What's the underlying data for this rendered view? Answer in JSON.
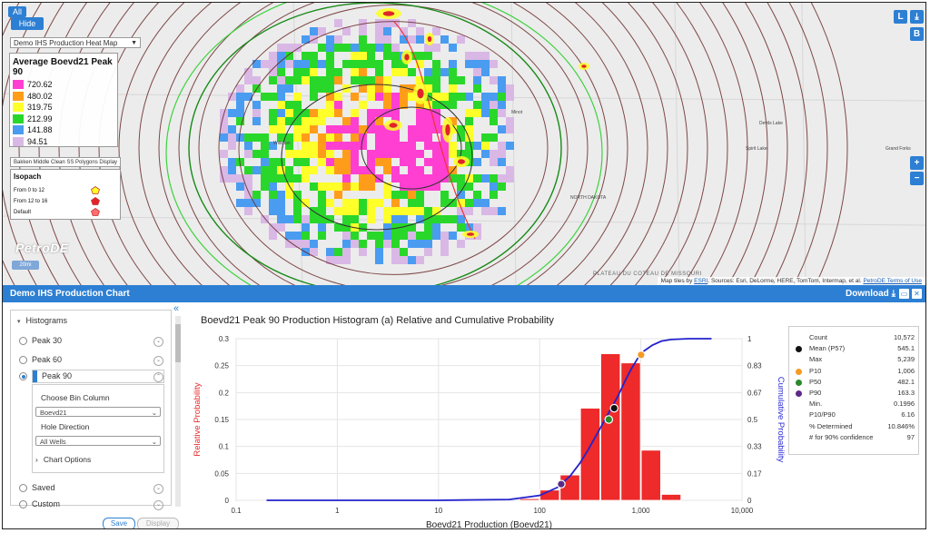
{
  "map": {
    "all_label": "All",
    "hide_label": "Hide",
    "layer_select": "Demo IHS Production Heat Map",
    "legend_title": "Average Boevd21 Peak 90",
    "legend": [
      {
        "label": "720.62",
        "color": "#ff3fd2"
      },
      {
        "label": "480.02",
        "color": "#ff9d1a"
      },
      {
        "label": "319.75",
        "color": "#ffff2a"
      },
      {
        "label": "212.99",
        "color": "#29d72a"
      },
      {
        "label": "141.88",
        "color": "#4a9cf0"
      },
      {
        "label": "94.51",
        "color": "#d9b8e6"
      }
    ],
    "polygon_select": "Bakken Middle Clean SS Polygons Display",
    "isopach_title": "Isopach",
    "isopach": [
      {
        "label": "From 0 to 12",
        "color": "#ffff22"
      },
      {
        "label": "From 12 to 16",
        "color": "#e0242a"
      },
      {
        "label": "Default",
        "color": "#ff6f6f"
      }
    ],
    "logo": "PetroDE",
    "zoom_badge": "20mi",
    "ctrl_l": "L",
    "ctrl_b": "B",
    "ctrl_plus": "+",
    "ctrl_minus": "−",
    "plateau": "PLATEAU DU COTEAU DE MISSOURI",
    "attribution_prefix": "Map tiles by",
    "attribution_esri": "ESRI",
    "attribution_mid": ". Sources: Esri, DeLorme, HERE, TomTom, Intermap, et al.",
    "attribution_link": "PetroDE Terms of Use",
    "places": [
      "NORTH DAKOTA",
      "Devils Lake",
      "Spirit Lake",
      "Grand Forks",
      "Minot",
      "Williston"
    ]
  },
  "panel": {
    "title": "Demo IHS Production Chart",
    "download_label": "Download",
    "collapse": "«"
  },
  "sidebar": {
    "histograms_label": "Histograms",
    "items": [
      "Peak 30",
      "Peak 60",
      "Peak 90"
    ],
    "bin_label": "Choose Bin Column",
    "bin_value": "Boevd21",
    "hole_label": "Hole Direction",
    "hole_value": "All Wells",
    "chart_options": "Chart Options",
    "saved": "Saved",
    "custom": "Custom",
    "save_button": "Save",
    "display_button": "Display"
  },
  "chart_data": {
    "type": "bar",
    "title": "Boevd21 Peak 90 Production Histogram (a) Relative and Cumulative Probability",
    "xlabel": "Boevd21 Production (Boevd21)",
    "ylabel": "Relative Probability",
    "y2label": "Cumulative Probability",
    "x_scale": "log",
    "xlim": [
      0.1,
      10000
    ],
    "x_ticks": [
      "0.1",
      "1",
      "10",
      "100",
      "1,000",
      "10,000"
    ],
    "ylim": [
      0,
      0.3
    ],
    "y_ticks": [
      "0",
      "0.05",
      "0.1",
      "0.15",
      "0.2",
      "0.25",
      "0.3"
    ],
    "y2_ticks": [
      "0",
      "0.17",
      "0.33",
      "0.5",
      "0.67",
      "0.83",
      "1"
    ],
    "bins": [
      {
        "x0": 63,
        "x1": 100,
        "value": 0.003
      },
      {
        "x0": 100,
        "x1": 158,
        "value": 0.019
      },
      {
        "x0": 158,
        "x1": 251,
        "value": 0.047
      },
      {
        "x0": 251,
        "x1": 398,
        "value": 0.171
      },
      {
        "x0": 398,
        "x1": 631,
        "value": 0.272
      },
      {
        "x0": 631,
        "x1": 1000,
        "value": 0.255
      },
      {
        "x0": 1000,
        "x1": 1585,
        "value": 0.093
      },
      {
        "x0": 1585,
        "x1": 2512,
        "value": 0.011
      }
    ],
    "cumulative": {
      "name": "Cumulative Probability",
      "x": [
        0.2,
        10,
        50,
        100,
        150,
        200,
        250,
        300,
        400,
        500,
        600,
        700,
        800,
        1000,
        1300,
        1600,
        2000,
        3000,
        5000
      ],
      "y": [
        0,
        0,
        0.005,
        0.03,
        0.08,
        0.15,
        0.23,
        0.31,
        0.45,
        0.56,
        0.65,
        0.74,
        0.81,
        0.91,
        0.96,
        0.985,
        0.995,
        1,
        1
      ]
    },
    "markers": [
      {
        "name": "P90",
        "x": 163.3,
        "y": 0.1,
        "color": "#5b2a86"
      },
      {
        "name": "P50",
        "x": 482.1,
        "y": 0.5,
        "color": "#2a8a2a"
      },
      {
        "name": "Mean (P57)",
        "x": 545.1,
        "y": 0.57,
        "color": "#111111"
      },
      {
        "name": "P10",
        "x": 1006,
        "y": 0.9,
        "color": "#f59a23"
      }
    ],
    "bar_color": "#ee2a2a",
    "line_color": "#2222cc",
    "grid": true
  },
  "stats": [
    {
      "k": "Count",
      "v": "10,572",
      "dot": ""
    },
    {
      "k": "Mean (P57)",
      "v": "545.1",
      "dot": "#111111"
    },
    {
      "k": "Max",
      "v": "5,239",
      "dot": ""
    },
    {
      "k": "P10",
      "v": "1,006",
      "dot": "#f59a23"
    },
    {
      "k": "P50",
      "v": "482.1",
      "dot": "#2a8a2a"
    },
    {
      "k": "P90",
      "v": "163.3",
      "dot": "#5b2a86"
    },
    {
      "k": "Min.",
      "v": "0.1996",
      "dot": ""
    },
    {
      "k": "P10/P90",
      "v": "6.16",
      "dot": ""
    },
    {
      "k": "% Determined",
      "v": "10.846%",
      "dot": ""
    },
    {
      "k": "# for 90% confidence",
      "v": "97",
      "dot": ""
    }
  ]
}
